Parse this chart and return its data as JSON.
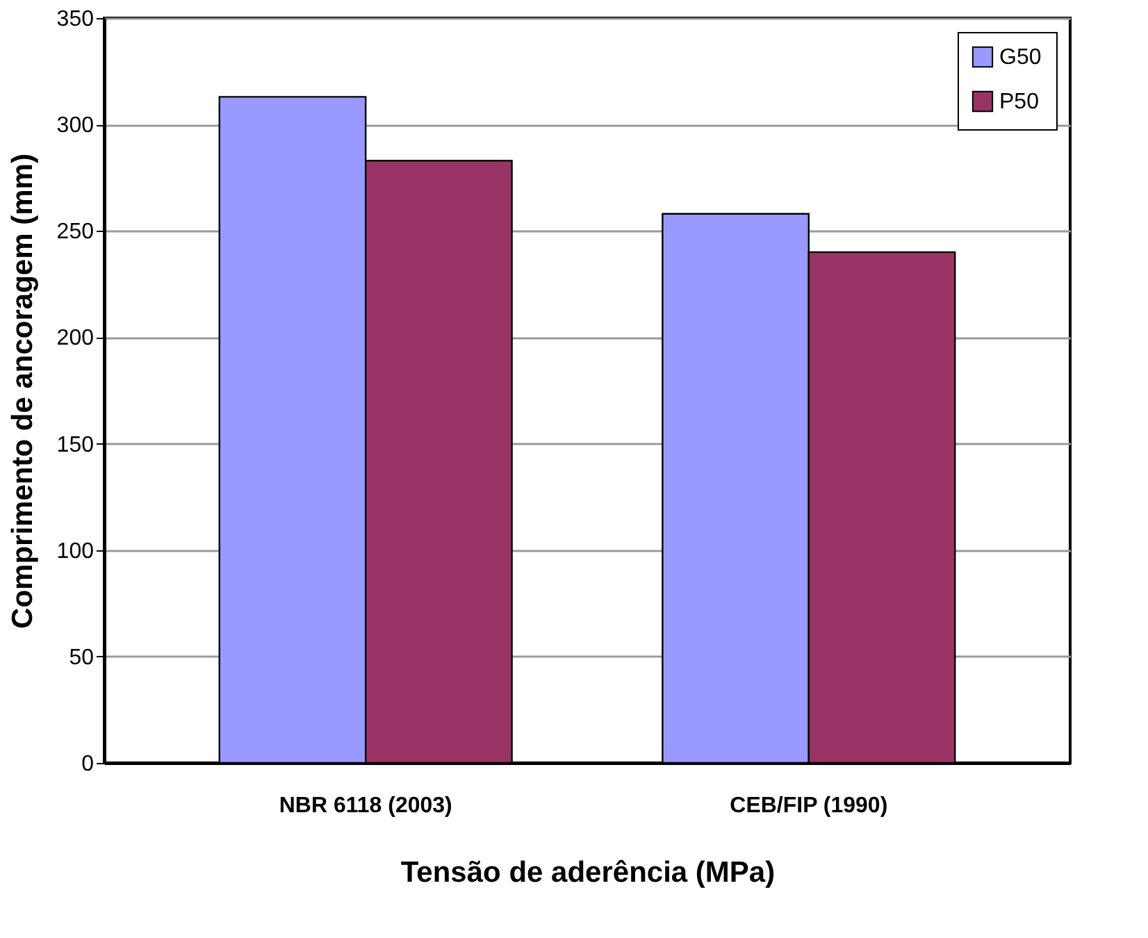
{
  "chart_data": {
    "type": "bar",
    "xlabel": "Tensão de aderência (MPa)",
    "ylabel": "Comprimento de ancoragem (mm)",
    "categories": [
      "NBR 6118 (2003)",
      "CEB/FIP (1990)"
    ],
    "series": [
      {
        "name": "G50",
        "color": "#9999ff",
        "values": [
          313,
          258
        ]
      },
      {
        "name": "P50",
        "color": "#993366",
        "values": [
          283,
          240
        ]
      }
    ],
    "ylim": [
      0,
      350
    ],
    "yticks": [
      0,
      50,
      100,
      150,
      200,
      250,
      300,
      350
    ],
    "grid": "y",
    "legend": "top right"
  }
}
